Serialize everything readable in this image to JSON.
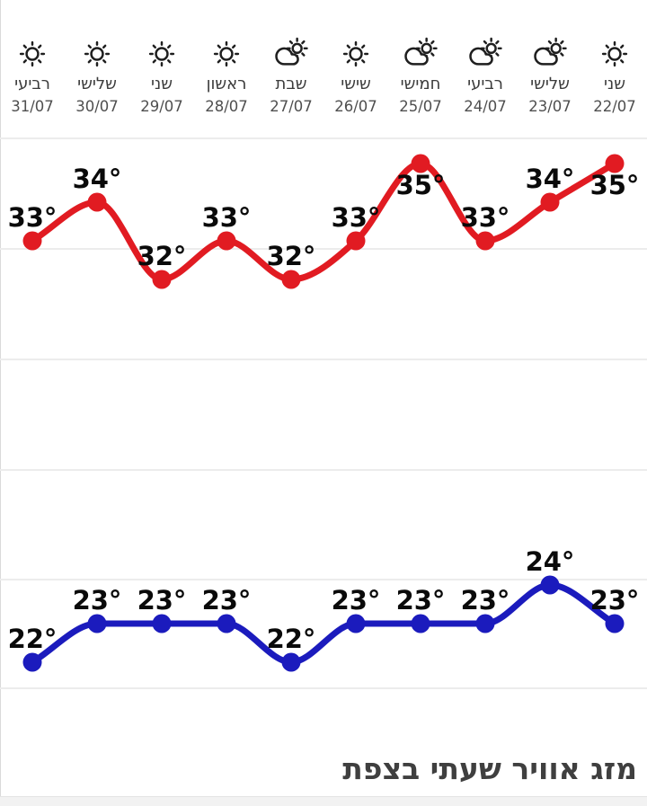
{
  "forecast": {
    "days": [
      {
        "name": "שני",
        "date": "22/07",
        "icon": "sunny"
      },
      {
        "name": "שלישי",
        "date": "23/07",
        "icon": "partly-cloudy"
      },
      {
        "name": "רביעי",
        "date": "24/07",
        "icon": "partly-cloudy"
      },
      {
        "name": "חמישי",
        "date": "25/07",
        "icon": "partly-cloudy"
      },
      {
        "name": "שישי",
        "date": "26/07",
        "icon": "sunny"
      },
      {
        "name": "שבת",
        "date": "27/07",
        "icon": "partly-cloudy"
      },
      {
        "name": "ראשון",
        "date": "28/07",
        "icon": "sunny"
      },
      {
        "name": "שני",
        "date": "29/07",
        "icon": "sunny"
      },
      {
        "name": "שלישי",
        "date": "30/07",
        "icon": "sunny"
      },
      {
        "name": "רביעי",
        "date": "31/07",
        "icon": "sunny"
      }
    ]
  },
  "chart_data": {
    "type": "line",
    "direction": "rtl",
    "note": "categories run right-to-left on screen; index 0 is the rightmost column",
    "categories": [
      "22/07",
      "23/07",
      "24/07",
      "25/07",
      "26/07",
      "27/07",
      "28/07",
      "29/07",
      "30/07",
      "31/07"
    ],
    "series": [
      {
        "name": "high",
        "color": "#e11b22",
        "unit": "°",
        "values": [
          35,
          34,
          33,
          35,
          33,
          32,
          33,
          32,
          34,
          33
        ],
        "labels_below_indices": [
          0,
          3
        ]
      },
      {
        "name": "low",
        "color": "#1b1bbd",
        "unit": "°",
        "values": [
          23,
          24,
          23,
          23,
          23,
          22,
          23,
          23,
          23,
          22
        ],
        "labels_below_indices": []
      }
    ],
    "grid": true,
    "gridline_count": 6,
    "legend": "none",
    "title": "",
    "xlabel": "",
    "ylabel": ""
  },
  "footer": {
    "title": "מזג אוויר שעתי בצפת"
  },
  "colors": {
    "high_line": "#e11b22",
    "low_line": "#1b1bbd",
    "grid": "#ececec",
    "point_label": "#0a0a0a",
    "day_text": "#3b3b3b",
    "date_text": "#4f4f4f",
    "title_text": "#3f3f3f",
    "bottom_band": "#f2f2f2",
    "icon_stroke": "#1f1f1f"
  }
}
